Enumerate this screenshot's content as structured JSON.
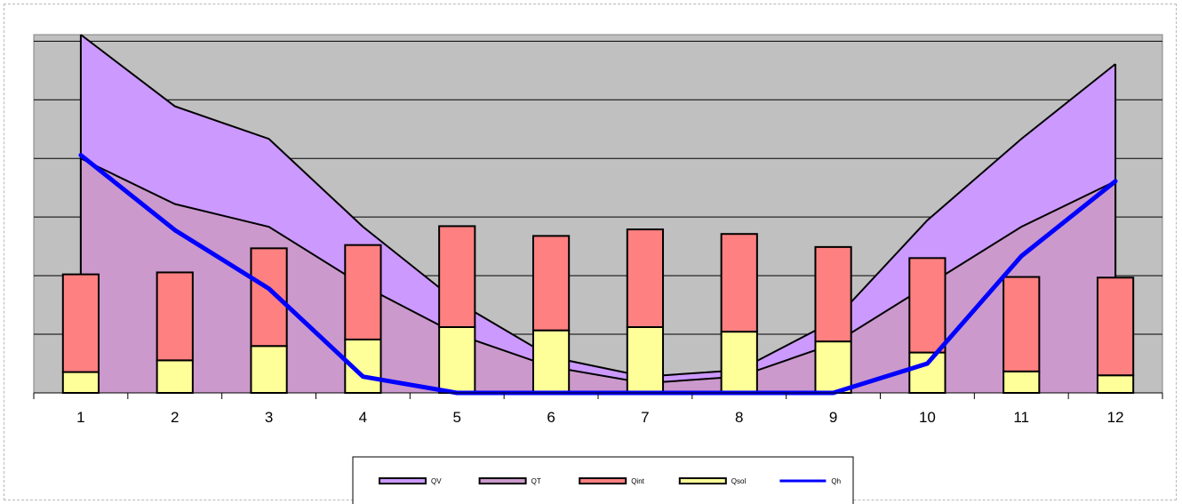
{
  "chart_data": {
    "type": "area",
    "categories": [
      "1",
      "2",
      "3",
      "4",
      "5",
      "6",
      "7",
      "8",
      "9",
      "10",
      "11",
      "12"
    ],
    "ylim": [
      0,
      5.5
    ],
    "grid": true,
    "legend_position": "bottom",
    "series": [
      {
        "name": "QV",
        "type": "area",
        "color": "#cc99ff",
        "values": [
          5.5,
          4.4,
          3.9,
          2.55,
          1.4,
          0.55,
          0.25,
          0.35,
          1.1,
          2.65,
          3.9,
          5.05
        ]
      },
      {
        "name": "QT",
        "type": "area",
        "color": "#cc99cc",
        "values": [
          3.6,
          2.9,
          2.55,
          1.65,
          0.9,
          0.4,
          0.15,
          0.25,
          0.75,
          1.65,
          2.55,
          3.25
        ]
      },
      {
        "name": "Qint",
        "type": "bar",
        "color": "#ff8080",
        "values": [
          1.5,
          1.35,
          1.5,
          1.45,
          1.55,
          1.45,
          1.5,
          1.5,
          1.45,
          1.45,
          1.45,
          1.5
        ]
      },
      {
        "name": "Qsol",
        "type": "bar",
        "color": "#ffff99",
        "values": [
          0.32,
          0.5,
          0.72,
          0.82,
          1.01,
          0.96,
          1.01,
          0.94,
          0.79,
          0.62,
          0.33,
          0.27
        ]
      },
      {
        "name": "Qh",
        "type": "line",
        "color": "#0000ff",
        "values": [
          3.65,
          2.5,
          1.6,
          0.25,
          0,
          0,
          0,
          0,
          0,
          0.45,
          2.1,
          3.25
        ]
      }
    ]
  }
}
